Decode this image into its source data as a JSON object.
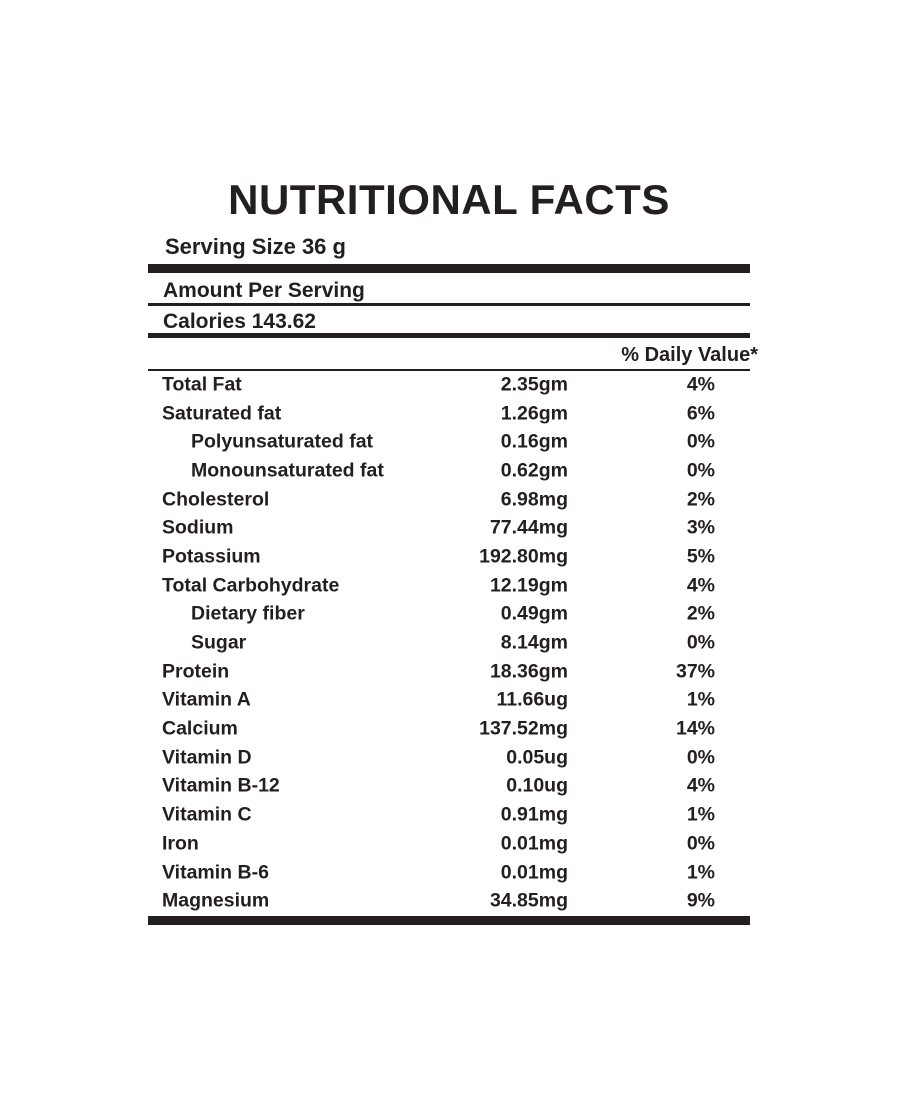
{
  "page": {
    "background_color": "#ffffff",
    "text_color": "#231f20"
  },
  "label": {
    "title": "NUTRITIONAL FACTS",
    "serving_size": "Serving Size 36 g",
    "amount_per_serving": "Amount Per Serving",
    "calories": "Calories 143.62",
    "daily_value_header": "% Daily Value*",
    "nutrients": [
      {
        "name": "Total Fat",
        "amount": "2.35gm",
        "daily_value": "4%",
        "indent": false
      },
      {
        "name": "Saturated fat",
        "amount": "1.26gm",
        "daily_value": "6%",
        "indent": false
      },
      {
        "name": "Polyunsaturated fat",
        "amount": "0.16gm",
        "daily_value": "0%",
        "indent": true
      },
      {
        "name": "Monounsaturated fat",
        "amount": "0.62gm",
        "daily_value": "0%",
        "indent": true
      },
      {
        "name": "Cholesterol",
        "amount": "6.98mg",
        "daily_value": "2%",
        "indent": false
      },
      {
        "name": "Sodium",
        "amount": "77.44mg",
        "daily_value": "3%",
        "indent": false
      },
      {
        "name": "Potassium",
        "amount": "192.80mg",
        "daily_value": "5%",
        "indent": false
      },
      {
        "name": "Total Carbohydrate",
        "amount": "12.19gm",
        "daily_value": "4%",
        "indent": false
      },
      {
        "name": "Dietary fiber",
        "amount": "0.49gm",
        "daily_value": "2%",
        "indent": true
      },
      {
        "name": "Sugar",
        "amount": "8.14gm",
        "daily_value": "0%",
        "indent": true
      },
      {
        "name": "Protein",
        "amount": "18.36gm",
        "daily_value": "37%",
        "indent": false
      },
      {
        "name": "Vitamin A",
        "amount": "11.66ug",
        "daily_value": "1%",
        "indent": false
      },
      {
        "name": "Calcium",
        "amount": "137.52mg",
        "daily_value": "14%",
        "indent": false
      },
      {
        "name": "Vitamin D",
        "amount": "0.05ug",
        "daily_value": "0%",
        "indent": false
      },
      {
        "name": "Vitamin B-12",
        "amount": "0.10ug",
        "daily_value": "4%",
        "indent": false
      },
      {
        "name": "Vitamin C",
        "amount": "0.91mg",
        "daily_value": "1%",
        "indent": false
      },
      {
        "name": "Iron",
        "amount": "0.01mg",
        "daily_value": "0%",
        "indent": false
      },
      {
        "name": "Vitamin B-6",
        "amount": "0.01mg",
        "daily_value": "1%",
        "indent": false
      },
      {
        "name": "Magnesium",
        "amount": "34.85mg",
        "daily_value": "9%",
        "indent": false
      }
    ]
  }
}
